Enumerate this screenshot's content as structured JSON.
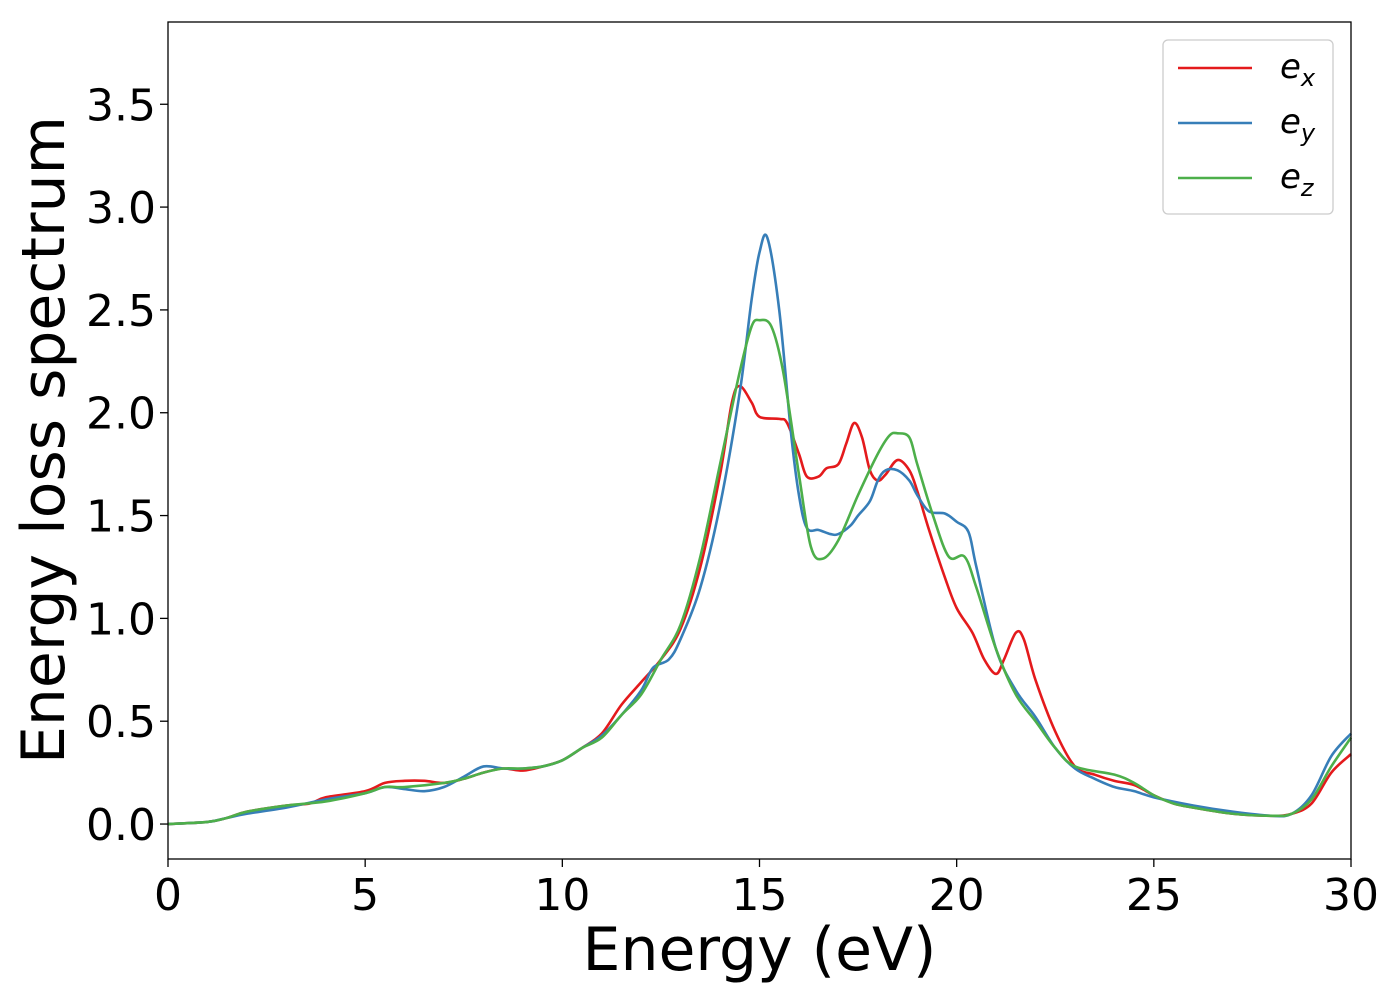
{
  "chart_data": {
    "type": "line",
    "xlabel": "Energy (eV)",
    "ylabel": "Energy loss spectrum",
    "xlim": [
      0,
      30
    ],
    "ylim": [
      -0.17,
      3.9
    ],
    "xticks": [
      0,
      5,
      10,
      15,
      20,
      25,
      30
    ],
    "xtick_labels": [
      "0",
      "5",
      "10",
      "15",
      "20",
      "25",
      "30"
    ],
    "yticks": [
      0.0,
      0.5,
      1.0,
      1.5,
      2.0,
      2.5,
      3.0,
      3.5
    ],
    "ytick_labels": [
      "0.0",
      "0.5",
      "1.0",
      "1.5",
      "2.0",
      "2.5",
      "3.0",
      "3.5"
    ],
    "grid": false,
    "legend_position": "top-right",
    "series": [
      {
        "name": "e",
        "subscript": "x",
        "color": "#e41a1c",
        "points": [
          [
            0,
            0.0
          ],
          [
            1,
            0.01
          ],
          [
            1.5,
            0.03
          ],
          [
            2,
            0.06
          ],
          [
            3,
            0.09
          ],
          [
            3.6,
            0.1
          ],
          [
            4,
            0.13
          ],
          [
            5,
            0.16
          ],
          [
            5.5,
            0.2
          ],
          [
            6,
            0.21
          ],
          [
            6.5,
            0.21
          ],
          [
            7,
            0.2
          ],
          [
            7.5,
            0.22
          ],
          [
            8,
            0.25
          ],
          [
            8.5,
            0.27
          ],
          [
            9,
            0.26
          ],
          [
            9.5,
            0.28
          ],
          [
            10,
            0.31
          ],
          [
            10.5,
            0.37
          ],
          [
            11,
            0.44
          ],
          [
            11.5,
            0.58
          ],
          [
            12,
            0.69
          ],
          [
            12.5,
            0.8
          ],
          [
            13,
            0.95
          ],
          [
            13.5,
            1.25
          ],
          [
            14,
            1.7
          ],
          [
            14.3,
            2.05
          ],
          [
            14.5,
            2.13
          ],
          [
            14.8,
            2.05
          ],
          [
            15,
            1.98
          ],
          [
            15.5,
            1.97
          ],
          [
            15.7,
            1.95
          ],
          [
            16,
            1.8
          ],
          [
            16.2,
            1.69
          ],
          [
            16.5,
            1.69
          ],
          [
            16.7,
            1.73
          ],
          [
            17,
            1.75
          ],
          [
            17.2,
            1.85
          ],
          [
            17.4,
            1.95
          ],
          [
            17.6,
            1.88
          ],
          [
            17.8,
            1.72
          ],
          [
            18,
            1.67
          ],
          [
            18.2,
            1.7
          ],
          [
            18.5,
            1.77
          ],
          [
            18.8,
            1.72
          ],
          [
            19,
            1.62
          ],
          [
            19.3,
            1.43
          ],
          [
            19.7,
            1.2
          ],
          [
            20,
            1.05
          ],
          [
            20.4,
            0.93
          ],
          [
            20.7,
            0.8
          ],
          [
            21,
            0.73
          ],
          [
            21.2,
            0.8
          ],
          [
            21.5,
            0.93
          ],
          [
            21.7,
            0.9
          ],
          [
            22,
            0.7
          ],
          [
            22.5,
            0.45
          ],
          [
            23,
            0.28
          ],
          [
            23.5,
            0.24
          ],
          [
            24,
            0.21
          ],
          [
            24.5,
            0.19
          ],
          [
            25,
            0.14
          ],
          [
            25.5,
            0.1
          ],
          [
            26,
            0.08
          ],
          [
            27,
            0.05
          ],
          [
            28,
            0.04
          ],
          [
            28.5,
            0.05
          ],
          [
            29,
            0.1
          ],
          [
            29.5,
            0.25
          ],
          [
            30,
            0.34
          ]
        ]
      },
      {
        "name": "e",
        "subscript": "y",
        "color": "#377eb8",
        "points": [
          [
            0,
            0.0
          ],
          [
            1,
            0.01
          ],
          [
            1.5,
            0.03
          ],
          [
            2,
            0.05
          ],
          [
            3,
            0.08
          ],
          [
            4,
            0.12
          ],
          [
            5,
            0.15
          ],
          [
            5.5,
            0.18
          ],
          [
            6,
            0.17
          ],
          [
            6.5,
            0.16
          ],
          [
            7,
            0.18
          ],
          [
            7.5,
            0.23
          ],
          [
            8,
            0.28
          ],
          [
            8.5,
            0.27
          ],
          [
            9,
            0.27
          ],
          [
            9.5,
            0.28
          ],
          [
            10,
            0.31
          ],
          [
            10.5,
            0.37
          ],
          [
            11,
            0.43
          ],
          [
            11.5,
            0.53
          ],
          [
            12,
            0.65
          ],
          [
            12.3,
            0.76
          ],
          [
            12.7,
            0.8
          ],
          [
            13,
            0.9
          ],
          [
            13.5,
            1.15
          ],
          [
            14,
            1.55
          ],
          [
            14.5,
            2.1
          ],
          [
            14.8,
            2.55
          ],
          [
            15,
            2.78
          ],
          [
            15.2,
            2.85
          ],
          [
            15.5,
            2.5
          ],
          [
            15.8,
            1.9
          ],
          [
            16,
            1.6
          ],
          [
            16.2,
            1.44
          ],
          [
            16.5,
            1.43
          ],
          [
            16.8,
            1.41
          ],
          [
            17,
            1.41
          ],
          [
            17.3,
            1.45
          ],
          [
            17.5,
            1.5
          ],
          [
            17.8,
            1.57
          ],
          [
            18,
            1.67
          ],
          [
            18.2,
            1.72
          ],
          [
            18.5,
            1.72
          ],
          [
            18.8,
            1.67
          ],
          [
            19,
            1.6
          ],
          [
            19.3,
            1.52
          ],
          [
            19.7,
            1.51
          ],
          [
            20,
            1.47
          ],
          [
            20.3,
            1.42
          ],
          [
            20.5,
            1.25
          ],
          [
            21,
            0.85
          ],
          [
            21.5,
            0.65
          ],
          [
            22,
            0.52
          ],
          [
            22.5,
            0.37
          ],
          [
            23,
            0.27
          ],
          [
            23.5,
            0.22
          ],
          [
            24,
            0.18
          ],
          [
            24.5,
            0.16
          ],
          [
            25,
            0.13
          ],
          [
            26,
            0.09
          ],
          [
            27,
            0.06
          ],
          [
            28,
            0.04
          ],
          [
            28.5,
            0.05
          ],
          [
            29,
            0.14
          ],
          [
            29.5,
            0.33
          ],
          [
            30,
            0.44
          ]
        ]
      },
      {
        "name": "e",
        "subscript": "z",
        "color": "#4daf4a",
        "points": [
          [
            0,
            0.0
          ],
          [
            1,
            0.01
          ],
          [
            1.5,
            0.03
          ],
          [
            2,
            0.06
          ],
          [
            3,
            0.09
          ],
          [
            4,
            0.11
          ],
          [
            5,
            0.15
          ],
          [
            5.5,
            0.18
          ],
          [
            6,
            0.18
          ],
          [
            7,
            0.2
          ],
          [
            7.5,
            0.22
          ],
          [
            8,
            0.25
          ],
          [
            8.5,
            0.27
          ],
          [
            9,
            0.27
          ],
          [
            9.5,
            0.28
          ],
          [
            10,
            0.31
          ],
          [
            10.5,
            0.37
          ],
          [
            11,
            0.42
          ],
          [
            11.5,
            0.53
          ],
          [
            12,
            0.63
          ],
          [
            12.5,
            0.8
          ],
          [
            13,
            0.97
          ],
          [
            13.5,
            1.3
          ],
          [
            14,
            1.75
          ],
          [
            14.5,
            2.2
          ],
          [
            14.8,
            2.42
          ],
          [
            15,
            2.45
          ],
          [
            15.3,
            2.42
          ],
          [
            15.6,
            2.2
          ],
          [
            16,
            1.7
          ],
          [
            16.3,
            1.35
          ],
          [
            16.6,
            1.29
          ],
          [
            17,
            1.38
          ],
          [
            17.5,
            1.6
          ],
          [
            18,
            1.8
          ],
          [
            18.3,
            1.89
          ],
          [
            18.5,
            1.9
          ],
          [
            18.8,
            1.88
          ],
          [
            19,
            1.75
          ],
          [
            19.4,
            1.5
          ],
          [
            19.8,
            1.3
          ],
          [
            20.2,
            1.3
          ],
          [
            20.5,
            1.15
          ],
          [
            21,
            0.85
          ],
          [
            21.5,
            0.63
          ],
          [
            22,
            0.5
          ],
          [
            22.5,
            0.37
          ],
          [
            23,
            0.28
          ],
          [
            24,
            0.24
          ],
          [
            24.5,
            0.2
          ],
          [
            25,
            0.14
          ],
          [
            25.5,
            0.1
          ],
          [
            26,
            0.08
          ],
          [
            27,
            0.05
          ],
          [
            28,
            0.04
          ],
          [
            28.5,
            0.05
          ],
          [
            29,
            0.12
          ],
          [
            29.5,
            0.28
          ],
          [
            30,
            0.42
          ]
        ]
      }
    ]
  }
}
